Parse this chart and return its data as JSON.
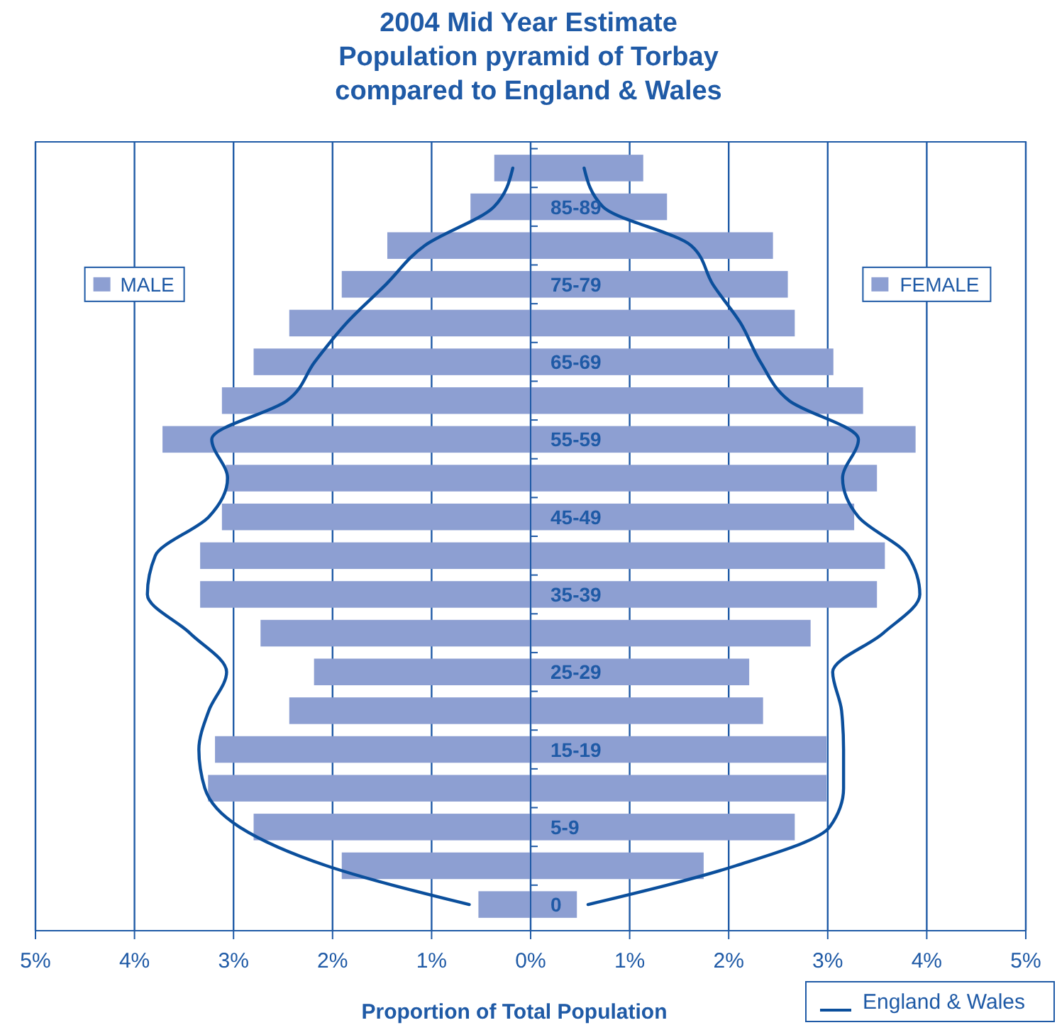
{
  "chart_data": {
    "type": "bar",
    "orientation": "horizontal",
    "stacked": true,
    "title": "2004 Mid Year Estimate\nPopulation pyramid of Torbay\ncompared to England & Wales",
    "xlabel": "Proportion of Total Population",
    "categories": [
      null,
      "85-89",
      null,
      "75-79",
      null,
      "65-69",
      null,
      "55-59",
      null,
      "45-49",
      null,
      "35-39",
      null,
      "25-29",
      null,
      "15-19",
      null,
      "5-9",
      null,
      "0"
    ],
    "series": [
      {
        "name": "MALE",
        "color": "#8d9fd2",
        "values": [
          -0.36,
          -0.6,
          -1.44,
          -1.9,
          -2.43,
          -2.79,
          -3.11,
          -3.71,
          -3.07,
          -3.11,
          -3.33,
          -3.33,
          -2.72,
          -2.18,
          -2.43,
          -3.18,
          -3.25,
          -2.79,
          -1.9,
          -0.52
        ]
      },
      {
        "name": "FEMALE",
        "color": "#8d9fd2",
        "values": [
          1.13,
          1.37,
          2.44,
          2.59,
          2.66,
          3.05,
          3.35,
          3.88,
          3.49,
          3.26,
          3.57,
          3.49,
          2.82,
          2.2,
          2.34,
          2.98,
          2.98,
          2.66,
          1.74,
          0.46
        ]
      },
      {
        "name": "England & Wales",
        "type": "line",
        "color": "#0b4f9c",
        "values": [
          -0.18,
          -0.37,
          -1.07,
          -1.46,
          -1.86,
          -2.18,
          -2.46,
          -3.22,
          -3.06,
          -3.25,
          -3.79,
          -3.87,
          -3.44,
          -3.07,
          -3.25,
          -3.35,
          -3.29,
          -2.94,
          -2.06,
          -0.62
        ]
      },
      {
        "type": "line",
        "color": "#0b4f9c",
        "values": [
          0.54,
          0.73,
          1.62,
          1.84,
          2.12,
          2.32,
          2.61,
          3.31,
          3.15,
          3.31,
          3.81,
          3.93,
          3.56,
          3.05,
          3.14,
          3.16,
          3.16,
          3.02,
          2.07,
          0.58
        ]
      }
    ],
    "xlim": [
      -5,
      5
    ],
    "xticks": [
      {
        "value": -5,
        "label": "5%"
      },
      {
        "value": -4,
        "label": "4%"
      },
      {
        "value": -3,
        "label": "3%"
      },
      {
        "value": -2,
        "label": "2%"
      },
      {
        "value": -1,
        "label": "1%"
      },
      {
        "value": 0,
        "label": "0%"
      },
      {
        "value": 1,
        "label": "1%"
      },
      {
        "value": 2,
        "label": "2%"
      },
      {
        "value": 3,
        "label": "3%"
      },
      {
        "value": 4,
        "label": "4%"
      },
      {
        "value": 5,
        "label": "5%"
      }
    ],
    "grid": "x",
    "legend": "bottom right"
  }
}
